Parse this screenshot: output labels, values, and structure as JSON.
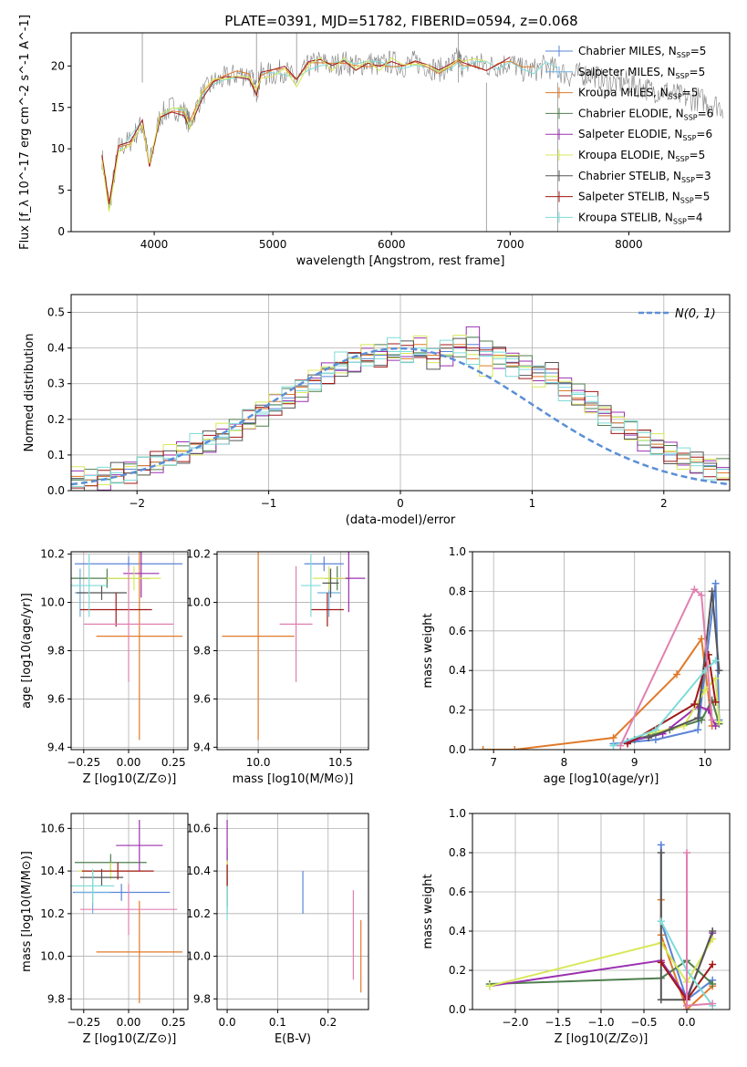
{
  "title": "PLATE=0391, MJD=51782, FIBERID=0594, z=0.068",
  "legend_spectrum": [
    {
      "label": "Chabrier MILES, N",
      "sub": "SSP",
      "suffix": "=5",
      "color": "#5b84d6"
    },
    {
      "label": "Salpeter MILES, N",
      "sub": "SSP",
      "suffix": "=5",
      "color": "#6fb0e0"
    },
    {
      "label": "Kroupa MILES, N",
      "sub": "SSP",
      "suffix": "=5",
      "color": "#e07a2a"
    },
    {
      "label": "Chabrier ELODIE, N",
      "sub": "SSP",
      "suffix": "=6",
      "color": "#4f7f4f"
    },
    {
      "label": "Salpeter ELODIE, N",
      "sub": "SSP",
      "suffix": "=6",
      "color": "#9b30b0"
    },
    {
      "label": "Kroupa ELODIE, N",
      "sub": "SSP",
      "suffix": "=5",
      "color": "#d8e858"
    },
    {
      "label": "Chabrier STELIB, N",
      "sub": "SSP",
      "suffix": "=3",
      "color": "#555555"
    },
    {
      "label": "Salpeter STELIB, N",
      "sub": "SSP",
      "suffix": "=5",
      "color": "#a01818"
    },
    {
      "label": "Kroupa STELIB, N",
      "sub": "SSP",
      "suffix": "=4",
      "color": "#7edcd8"
    }
  ],
  "normal_legend": "N(0, 1)",
  "chart_data": [
    {
      "type": "line",
      "name": "spectrum",
      "xlabel": "wavelength [Angstrom, rest frame]",
      "ylabel": "Flux [f_λ 10^-17 erg cm^-2 s^-1 A^-1]",
      "xlim": [
        3300,
        8850
      ],
      "ylim": [
        0,
        24
      ],
      "xticks": [
        "4000",
        "5000",
        "6000",
        "7000",
        "8000"
      ],
      "yticks": [
        "0",
        "5",
        "10",
        "15",
        "20"
      ],
      "grid": false,
      "legend": "top-right",
      "series": [
        {
          "name": "data",
          "x": [
            3560,
            3620,
            3700,
            3800,
            3900,
            3960,
            4050,
            4150,
            4250,
            4300,
            4400,
            4500,
            4600,
            4700,
            4800,
            4862,
            4900,
            5000,
            5100,
            5200,
            5300,
            5400,
            5500,
            5600,
            5700,
            5800,
            5900,
            6000,
            6100,
            6200,
            6300,
            6400,
            6500,
            6563,
            6600,
            6700,
            6800,
            6900,
            7000,
            7100,
            7200,
            7300,
            7400,
            7500,
            7600,
            7700,
            7800,
            7900,
            8000,
            8100,
            8200,
            8300,
            8400,
            8500,
            8600,
            8700,
            8800
          ],
          "values": [
            9,
            3,
            10,
            11,
            13,
            8,
            14,
            15,
            14.5,
            13,
            16.5,
            18,
            18.5,
            19,
            19,
            17,
            19,
            19,
            19.5,
            18,
            20,
            20.5,
            20,
            20.5,
            20,
            20.5,
            20,
            20.5,
            20,
            20.5,
            20,
            19.5,
            20,
            21,
            20,
            20.5,
            20,
            20,
            20.5,
            19.5,
            19.5,
            20,
            19.5,
            18.8,
            19,
            19,
            18,
            18,
            18,
            17.5,
            17,
            17,
            16.5,
            16,
            16,
            15.5,
            15
          ]
        }
      ]
    },
    {
      "type": "line",
      "name": "residuals",
      "xlabel": "(data-model)/error",
      "ylabel": "Normed distribution",
      "xlim": [
        -2.5,
        2.5
      ],
      "ylim": [
        0,
        0.55
      ],
      "xticks": [
        "−2",
        "−1",
        "0",
        "1",
        "2"
      ],
      "yticks": [
        "0.0",
        "0.1",
        "0.2",
        "0.3",
        "0.4",
        "0.5"
      ],
      "grid": true,
      "legend": "top-right",
      "bin_start": -2.5,
      "bin_width": 0.1,
      "series": [
        {
          "name": "Chabrier MILES",
          "values": [
            0.03,
            0.03,
            0.04,
            0.05,
            0.06,
            0.07,
            0.08,
            0.09,
            0.1,
            0.12,
            0.14,
            0.15,
            0.17,
            0.19,
            0.21,
            0.23,
            0.26,
            0.28,
            0.3,
            0.32,
            0.34,
            0.36,
            0.37,
            0.38,
            0.38,
            0.39,
            0.38,
            0.37,
            0.39,
            0.4,
            0.41,
            0.4,
            0.38,
            0.36,
            0.35,
            0.34,
            0.33,
            0.3,
            0.27,
            0.24,
            0.21,
            0.19,
            0.17,
            0.15,
            0.12,
            0.1,
            0.09,
            0.08,
            0.07,
            0.06
          ]
        },
        {
          "name": "Salpeter MILES",
          "values": [
            0.03,
            0.03,
            0.03,
            0.05,
            0.05,
            0.06,
            0.08,
            0.09,
            0.11,
            0.12,
            0.13,
            0.15,
            0.17,
            0.2,
            0.22,
            0.24,
            0.25,
            0.28,
            0.31,
            0.33,
            0.35,
            0.36,
            0.38,
            0.37,
            0.39,
            0.39,
            0.4,
            0.38,
            0.38,
            0.4,
            0.43,
            0.39,
            0.37,
            0.37,
            0.34,
            0.33,
            0.32,
            0.29,
            0.27,
            0.25,
            0.22,
            0.19,
            0.16,
            0.14,
            0.13,
            0.11,
            0.09,
            0.07,
            0.06,
            0.05
          ]
        },
        {
          "name": "Kroupa MILES",
          "values": [
            0.04,
            0.03,
            0.04,
            0.04,
            0.05,
            0.07,
            0.08,
            0.1,
            0.11,
            0.13,
            0.14,
            0.16,
            0.18,
            0.2,
            0.23,
            0.25,
            0.27,
            0.29,
            0.31,
            0.34,
            0.36,
            0.37,
            0.38,
            0.39,
            0.4,
            0.37,
            0.41,
            0.38,
            0.4,
            0.41,
            0.37,
            0.35,
            0.38,
            0.35,
            0.35,
            0.32,
            0.31,
            0.28,
            0.26,
            0.24,
            0.21,
            0.19,
            0.17,
            0.15,
            0.13,
            0.11,
            0.09,
            0.08,
            0.06,
            0.05
          ]
        }
      ],
      "normal": {
        "mu": 0,
        "sigma": 1
      }
    },
    {
      "type": "scatter",
      "name": "age-vs-Z",
      "xlabel": "Z [log10(Z/Z⊙)]",
      "ylabel": "age [log10(age/yr)]",
      "xlim": [
        -0.32,
        0.33
      ],
      "ylim": [
        9.39,
        10.21
      ],
      "xticks": [
        "−0.25",
        "0.00",
        "0.25"
      ],
      "yticks": [
        "9.4",
        "9.6",
        "9.8",
        "10.0",
        "10.2"
      ],
      "grid": true,
      "points": [
        {
          "x": 0.0,
          "xerr": 0.3,
          "y": 10.16,
          "yerr": 0.03
        },
        {
          "x": -0.27,
          "xerr": 0.03,
          "y": 10.04,
          "yerr": 0.1
        },
        {
          "x": 0.06,
          "xerr": 0.24,
          "y": 9.86,
          "yerr": 0.43
        },
        {
          "x": -0.12,
          "xerr": 0.24,
          "y": 10.1,
          "yerr": 0.04
        },
        {
          "x": 0.07,
          "xerr": 0.1,
          "y": 10.12,
          "yerr": 0.1
        },
        {
          "x": 0.03,
          "xerr": 0.15,
          "y": 10.1,
          "yerr": 0.05
        },
        {
          "x": -0.15,
          "xerr": 0.14,
          "y": 10.04,
          "yerr": 0.03
        },
        {
          "x": -0.07,
          "xerr": 0.2,
          "y": 9.97,
          "yerr": 0.07
        },
        {
          "x": -0.22,
          "xerr": 0.1,
          "y": 10.07,
          "yerr": 0.13
        },
        {
          "x": 0.0,
          "xerr": 0.25,
          "y": 9.91,
          "yerr": 0.24
        }
      ]
    },
    {
      "type": "scatter",
      "name": "age-vs-mass",
      "xlabel": "mass [log10(M/M⊙)]",
      "ylabel": "",
      "xlim": [
        9.75,
        10.67
      ],
      "ylim": [
        9.39,
        10.21
      ],
      "xticks": [
        "10.0",
        "10.5"
      ],
      "yticks": [
        "9.4",
        "9.6",
        "9.8",
        "10.0",
        "10.2"
      ],
      "grid": true,
      "points": [
        {
          "x": 10.4,
          "xerr": 0.12,
          "y": 10.16,
          "yerr": 0.03
        },
        {
          "x": 10.43,
          "xerr": 0.07,
          "y": 10.04,
          "yerr": 0.1
        },
        {
          "x": 10.0,
          "xerr": 0.22,
          "y": 9.86,
          "yerr": 0.43
        },
        {
          "x": 10.48,
          "xerr": 0.08,
          "y": 10.1,
          "yerr": 0.05
        },
        {
          "x": 10.55,
          "xerr": 0.1,
          "y": 10.1,
          "yerr": 0.14
        },
        {
          "x": 10.43,
          "xerr": 0.1,
          "y": 10.1,
          "yerr": 0.05
        },
        {
          "x": 10.44,
          "xerr": 0.05,
          "y": 10.08,
          "yerr": 0.06
        },
        {
          "x": 10.42,
          "xerr": 0.1,
          "y": 9.97,
          "yerr": 0.07
        },
        {
          "x": 10.32,
          "xerr": 0.06,
          "y": 10.07,
          "yerr": 0.13
        },
        {
          "x": 10.23,
          "xerr": 0.1,
          "y": 9.91,
          "yerr": 0.24
        }
      ]
    },
    {
      "type": "line",
      "name": "weight-vs-age",
      "xlabel": "age [log10(age/yr)]",
      "ylabel": "mass weight",
      "xlim": [
        6.7,
        10.35
      ],
      "ylim": [
        0,
        1
      ],
      "xticks": [
        "7",
        "8",
        "9",
        "10"
      ],
      "yticks": [
        "0.0",
        "0.2",
        "0.4",
        "0.6",
        "0.8",
        "1.0"
      ],
      "grid": true,
      "series": [
        {
          "name": "Chabrier MILES",
          "x": [
            8.7,
            9.3,
            9.9,
            10.15,
            10.2
          ],
          "values": [
            0.03,
            0.05,
            0.1,
            0.84,
            0.15
          ]
        },
        {
          "name": "Kroupa MILES",
          "x": [
            6.85,
            7.3,
            8.7,
            9.6,
            9.95,
            10.1
          ],
          "values": [
            0.0,
            0.0,
            0.06,
            0.38,
            0.56,
            0.12
          ]
        },
        {
          "name": "Chabrier ELODIE",
          "x": [
            9.0,
            9.5,
            9.95,
            10.1,
            10.2
          ],
          "values": [
            0.05,
            0.1,
            0.15,
            0.25,
            0.13
          ]
        },
        {
          "name": "Salpeter ELODIE",
          "x": [
            8.9,
            9.4,
            9.9,
            10.05,
            10.15
          ],
          "values": [
            0.04,
            0.08,
            0.22,
            0.2,
            0.12
          ]
        },
        {
          "name": "Kroupa ELODIE",
          "x": [
            9.2,
            9.7,
            10.0,
            10.15,
            10.2
          ],
          "values": [
            0.08,
            0.12,
            0.3,
            0.36,
            0.14
          ]
        },
        {
          "name": "Chabrier STELIB",
          "x": [
            9.2,
            9.9,
            10.1,
            10.2
          ],
          "values": [
            0.06,
            0.16,
            0.8,
            0.4
          ]
        },
        {
          "name": "Salpeter STELIB",
          "x": [
            8.9,
            9.85,
            10.05,
            10.15
          ],
          "values": [
            0.03,
            0.23,
            0.48,
            0.24
          ]
        },
        {
          "name": "Kroupa STELIB",
          "x": [
            8.7,
            9.3,
            10.0,
            10.15
          ],
          "values": [
            0.02,
            0.1,
            0.4,
            0.45
          ]
        },
        {
          "name": "Pink",
          "x": [
            8.8,
            9.85,
            9.95,
            10.1
          ],
          "values": [
            0.02,
            0.81,
            0.78,
            0.15
          ]
        }
      ]
    },
    {
      "type": "scatter",
      "name": "mass-vs-Z",
      "xlabel": "Z [log10(Z/Z⊙)]",
      "ylabel": "mass [log10(M/M⊙)]",
      "xlim": [
        -0.32,
        0.33
      ],
      "ylim": [
        9.75,
        10.67
      ],
      "xticks": [
        "−0.25",
        "0.00",
        "0.25"
      ],
      "yticks": [
        "9.8",
        "10.0",
        "10.2",
        "10.4",
        "10.6"
      ],
      "grid": true,
      "points": [
        {
          "x": -0.04,
          "xerr": 0.27,
          "y": 10.3,
          "yerr": 0.04
        },
        {
          "x": -0.2,
          "xerr": 0.1,
          "y": 10.3,
          "yerr": 0.1
        },
        {
          "x": 0.06,
          "xerr": 0.24,
          "y": 10.02,
          "yerr": 0.24
        },
        {
          "x": -0.1,
          "xerr": 0.2,
          "y": 10.44,
          "yerr": 0.04
        },
        {
          "x": 0.06,
          "xerr": 0.13,
          "y": 10.52,
          "yerr": 0.12
        },
        {
          "x": -0.1,
          "xerr": 0.18,
          "y": 10.4,
          "yerr": 0.04
        },
        {
          "x": -0.15,
          "xerr": 0.12,
          "y": 10.37,
          "yerr": 0.04
        },
        {
          "x": -0.06,
          "xerr": 0.2,
          "y": 10.4,
          "yerr": 0.04
        },
        {
          "x": -0.2,
          "xerr": 0.12,
          "y": 10.33,
          "yerr": 0.08
        },
        {
          "x": 0.0,
          "xerr": 0.27,
          "y": 10.22,
          "yerr": 0.12
        }
      ]
    },
    {
      "type": "scatter",
      "name": "mass-vs-EBV",
      "xlabel": "E(B-V)",
      "ylabel": "",
      "xlim": [
        -0.02,
        0.28
      ],
      "ylim": [
        9.75,
        10.67
      ],
      "xticks": [
        "0.0",
        "0.1",
        "0.2"
      ],
      "yticks": [
        "9.8",
        "10.0",
        "10.2",
        "10.4",
        "10.6"
      ],
      "grid": true,
      "points": [
        {
          "x": 0.15,
          "xerr": 0.0,
          "y": 10.3,
          "yerr": 0.1
        },
        {
          "x": 0.0,
          "xerr": 0.0,
          "y": 10.3,
          "yerr": 0.1
        },
        {
          "x": 0.265,
          "xerr": 0.0,
          "y": 10.0,
          "yerr": 0.17
        },
        {
          "x": 0.0,
          "xerr": 0.0,
          "y": 10.44,
          "yerr": 0.07
        },
        {
          "x": 0.0,
          "xerr": 0.0,
          "y": 10.52,
          "yerr": 0.12
        },
        {
          "x": 0.0,
          "xerr": 0.0,
          "y": 10.35,
          "yerr": 0.1
        },
        {
          "x": 0.0,
          "xerr": 0.0,
          "y": 10.3,
          "yerr": 0.07
        },
        {
          "x": 0.0,
          "xerr": 0.0,
          "y": 10.38,
          "yerr": 0.05
        },
        {
          "x": 0.0,
          "xerr": 0.0,
          "y": 10.25,
          "yerr": 0.08
        },
        {
          "x": 0.25,
          "xerr": 0.0,
          "y": 10.1,
          "yerr": 0.21
        }
      ]
    },
    {
      "type": "line",
      "name": "weight-vs-Z",
      "xlabel": "Z [log10(Z/Z⊙)]",
      "ylabel": "mass weight",
      "xlim": [
        -2.5,
        0.5
      ],
      "ylim": [
        0,
        1
      ],
      "xticks": [
        "−2.0",
        "−1.5",
        "−1.0",
        "−0.5",
        "0.0"
      ],
      "yticks": [
        "0.0",
        "0.2",
        "0.4",
        "0.6",
        "0.8",
        "1.0"
      ],
      "grid": true,
      "series": [
        {
          "name": "Chabrier MILES",
          "x": [
            -0.3,
            -0.3,
            0.0,
            0.3
          ],
          "values": [
            0.84,
            0.45,
            0.05,
            0.15
          ]
        },
        {
          "name": "Kroupa MILES",
          "x": [
            -0.3,
            -0.3,
            0.0,
            0.3
          ],
          "values": [
            0.56,
            0.38,
            0.0,
            0.12
          ]
        },
        {
          "name": "Chabrier ELODIE",
          "x": [
            -2.3,
            -0.3,
            0.0,
            0.3
          ],
          "values": [
            0.13,
            0.16,
            0.25,
            0.13
          ]
        },
        {
          "name": "Salpeter ELODIE",
          "x": [
            -2.3,
            -0.3,
            0.0,
            0.3
          ],
          "values": [
            0.12,
            0.25,
            0.06,
            0.39
          ]
        },
        {
          "name": "Kroupa ELODIE",
          "x": [
            -2.3,
            -0.3,
            0.0,
            0.3
          ],
          "values": [
            0.12,
            0.34,
            0.14,
            0.36
          ]
        },
        {
          "name": "Chabrier STELIB",
          "x": [
            -0.3,
            -0.3,
            0.0,
            0.3
          ],
          "values": [
            0.8,
            0.05,
            0.05,
            0.4
          ]
        },
        {
          "name": "Salpeter STELIB",
          "x": [
            -0.3,
            0.0,
            0.3
          ],
          "values": [
            0.24,
            0.05,
            0.23
          ]
        },
        {
          "name": "Kroupa STELIB",
          "x": [
            -0.3,
            0.0,
            0.3
          ],
          "values": [
            0.45,
            0.2,
            0.02
          ]
        },
        {
          "name": "Pink",
          "x": [
            0.0,
            0.0,
            0.3
          ],
          "values": [
            0.8,
            0.02,
            0.03
          ]
        }
      ]
    }
  ],
  "colors": [
    "#5b84d6",
    "#6fb0e0",
    "#e07a2a",
    "#4f7f4f",
    "#9b30b0",
    "#d8e858",
    "#555555",
    "#a01818",
    "#7edcd8",
    "#e080b0"
  ]
}
